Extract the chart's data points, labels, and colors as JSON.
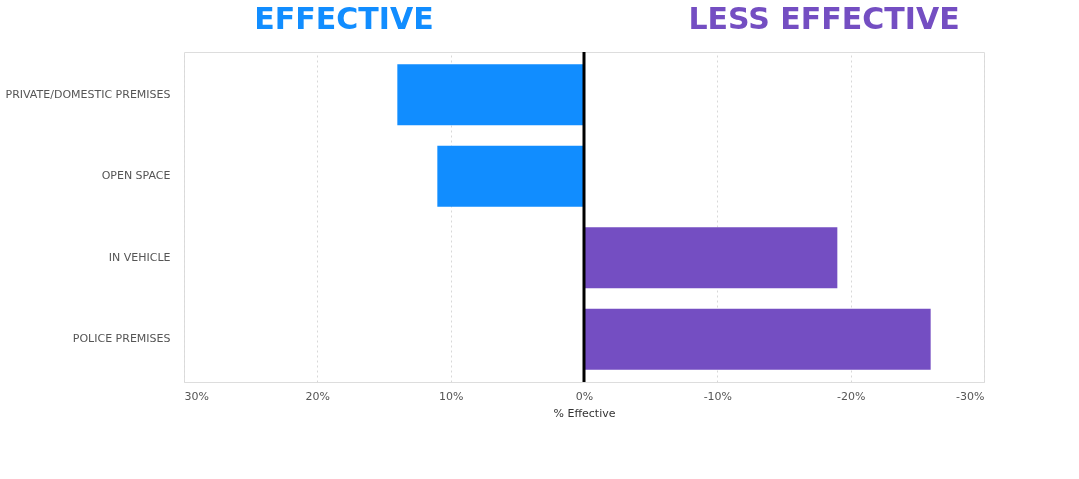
{
  "chart_data": {
    "type": "bar",
    "orientation": "horizontal",
    "categories": [
      "PRIVATE/DOMESTIC PREMISES",
      "OPEN SPACE",
      "IN VEHICLE",
      "POLICE PREMISES"
    ],
    "values": [
      14,
      11,
      -19,
      -26
    ],
    "colors": [
      "#118dff",
      "#118dff",
      "#744ec2",
      "#744ec2"
    ],
    "xlabel": "% Effective",
    "xlim": [
      30,
      -30
    ],
    "xticks": [
      {
        "value": 30,
        "label": "30%"
      },
      {
        "value": 20,
        "label": "20%"
      },
      {
        "value": 10,
        "label": "10%"
      },
      {
        "value": 0,
        "label": "0%"
      },
      {
        "value": -10,
        "label": "-10%"
      },
      {
        "value": -20,
        "label": "-20%"
      },
      {
        "value": -30,
        "label": "-30%"
      }
    ],
    "grid": "x",
    "ref_lines": [
      {
        "axis": "x",
        "value": 0,
        "color": "#000000"
      }
    ],
    "annotations": [
      "EFFECTIVE",
      "LESS EFFECTIVE"
    ]
  }
}
